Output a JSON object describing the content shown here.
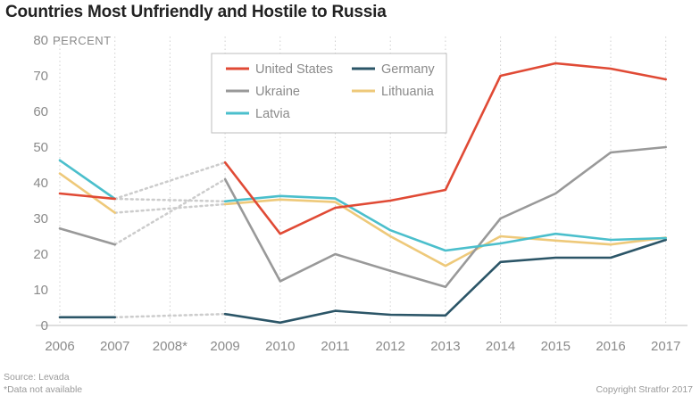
{
  "title": "Countries Most Unfriendly and Hostile to Russia",
  "source": "Source: Levada",
  "note": "*Data not available",
  "copyright": "Copyright Stratfor 2017",
  "chart_data": {
    "type": "line",
    "title": "Countries Most Unfriendly and Hostile to Russia",
    "ylabel": "PERCENT",
    "categories": [
      "2006",
      "2007",
      "2008*",
      "2009",
      "2010",
      "2011",
      "2012",
      "2013",
      "2014",
      "2015",
      "2016",
      "2017"
    ],
    "ylim": [
      0,
      80
    ],
    "yticks": [
      0,
      10,
      20,
      30,
      40,
      50,
      60,
      70,
      80
    ],
    "grid": "vertical dotted",
    "legend": "top-center",
    "missing_category": "2008*",
    "series": [
      {
        "name": "United States",
        "color": "#e04a35",
        "values": [
          37,
          35.5,
          null,
          45.7,
          25.7,
          33,
          35,
          38,
          70,
          73.5,
          72,
          69
        ]
      },
      {
        "name": "Ukraine",
        "color": "#999999",
        "values": [
          27.2,
          22.7,
          null,
          41,
          12.4,
          20,
          15.3,
          10.8,
          30,
          37,
          48.5,
          50
        ]
      },
      {
        "name": "Latvia",
        "color": "#4bbfcc",
        "values": [
          46.3,
          35.5,
          null,
          34.8,
          36.3,
          35.6,
          26.7,
          21,
          23,
          25.7,
          24,
          24.5
        ]
      },
      {
        "name": "Germany",
        "color": "#2b5567",
        "values": [
          2.3,
          2.3,
          null,
          3.2,
          0.8,
          4.1,
          3,
          2.8,
          17.8,
          19,
          19,
          24
        ]
      },
      {
        "name": "Lithuania",
        "color": "#eec97a",
        "values": [
          42.6,
          31.6,
          null,
          34,
          35.3,
          34.6,
          25,
          16.7,
          25,
          23.8,
          22.7,
          24.6
        ]
      }
    ]
  }
}
